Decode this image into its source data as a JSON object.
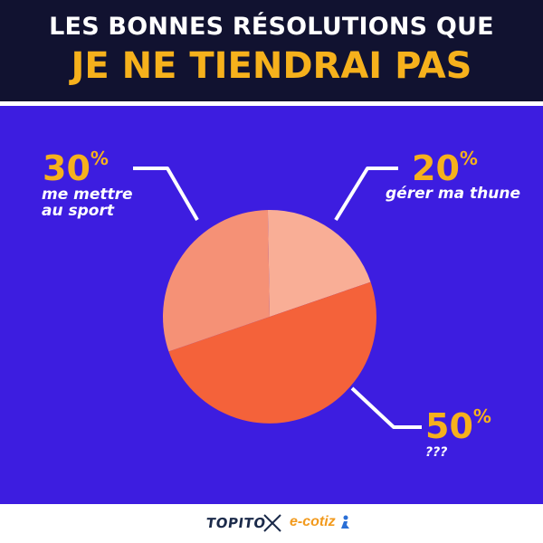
{
  "header": {
    "title_line1": "LES BONNES RÉSOLUTIONS QUE",
    "title_line2": "JE NE TIENDRAI PAS"
  },
  "chart_data": {
    "type": "pie",
    "slices": [
      {
        "label": "gérer ma thune",
        "value": 20,
        "display": "20",
        "color": "#f9ae96"
      },
      {
        "label": "???",
        "value": 50,
        "display": "50",
        "color": "#f4623a"
      },
      {
        "label": "me mettre au sport",
        "value": 30,
        "display": "30",
        "color": "#f59176"
      }
    ],
    "percent_sign": "%",
    "label_sport_line1": "me mettre",
    "label_sport_line2": "au sport",
    "colors": {
      "background": "#3d1de0",
      "header": "#111230",
      "accent": "#f6b11c",
      "leader_lines": "#ffffff"
    }
  },
  "footer": {
    "brand_left": "TOPITO",
    "brand_right": "e-cotiz",
    "separator_icon": "cross-icon"
  }
}
